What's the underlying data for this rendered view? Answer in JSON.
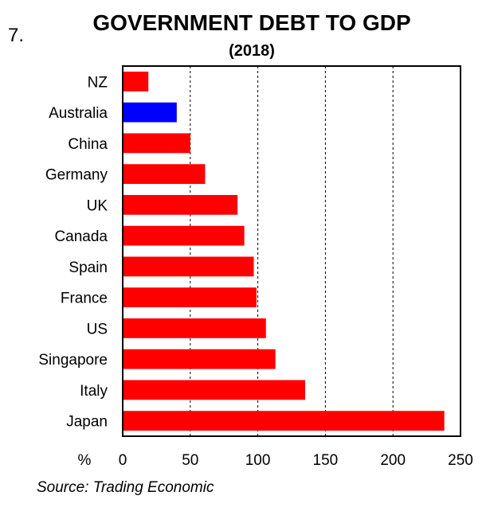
{
  "figure_number": "7.",
  "chart_data": {
    "type": "bar",
    "orientation": "horizontal",
    "title": "GOVERNMENT DEBT TO GDP",
    "subtitle": "(2018)",
    "unit_label": "%",
    "categories": [
      "NZ",
      "Australia",
      "China",
      "Germany",
      "UK",
      "Canada",
      "Spain",
      "France",
      "US",
      "Singapore",
      "Italy",
      "Japan"
    ],
    "values": [
      19,
      40,
      50,
      61,
      85,
      90,
      97,
      99,
      106,
      113,
      135,
      238
    ],
    "colors": [
      "#ff0000",
      "#0000ff",
      "#ff0000",
      "#ff0000",
      "#ff0000",
      "#ff0000",
      "#ff0000",
      "#ff0000",
      "#ff0000",
      "#ff0000",
      "#ff0000",
      "#ff0000"
    ],
    "xlim": [
      0,
      250
    ],
    "xticks": [
      0,
      50,
      100,
      150,
      200,
      250
    ],
    "xtick_labels": [
      "0",
      "50",
      "100",
      "150",
      "200",
      "250"
    ],
    "grid": "vertical dashed",
    "source": "Source: Trading Economic"
  }
}
